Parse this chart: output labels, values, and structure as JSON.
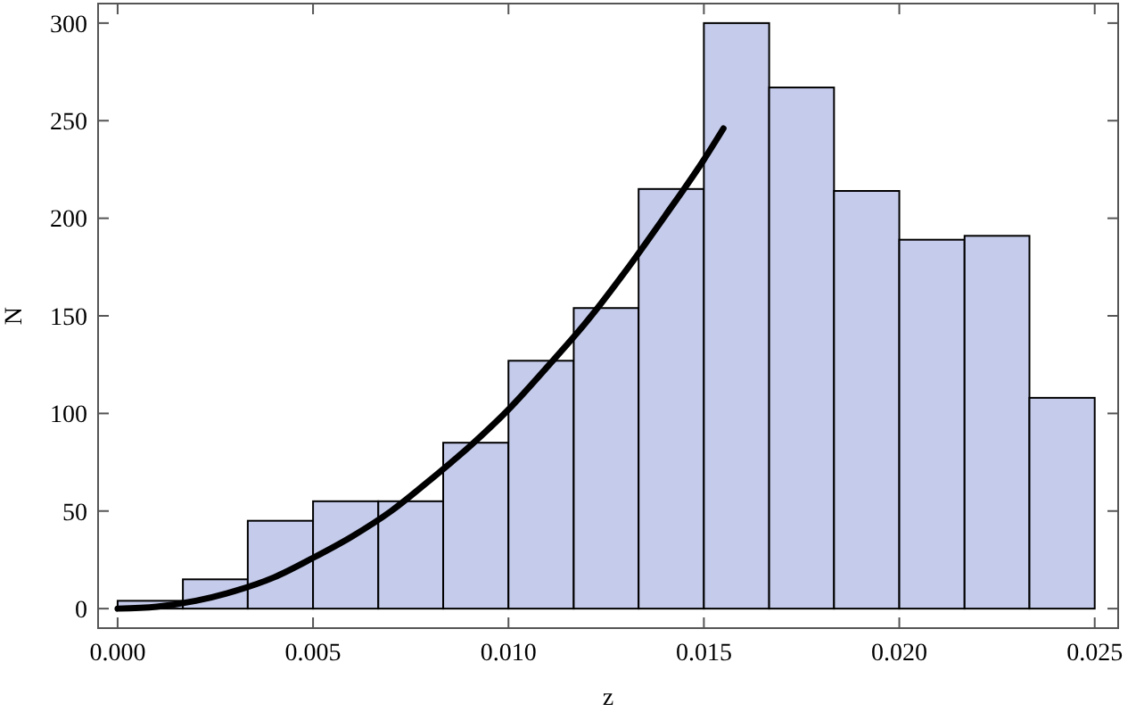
{
  "chart_data": {
    "type": "histogram",
    "xlabel": "z",
    "ylabel": "N",
    "bins": [
      0,
      0.00167,
      0.00333,
      0.005,
      0.00667,
      0.00833,
      0.01,
      0.01167,
      0.01333,
      0.015,
      0.01667,
      0.01833,
      0.02,
      0.02167,
      0.02333,
      0.025
    ],
    "values": [
      4,
      15,
      45,
      55,
      55,
      85,
      127,
      154,
      215,
      300,
      267,
      214,
      189,
      191,
      108
    ],
    "color": "#c5cbeb",
    "series": [
      {
        "type": "line",
        "color": "#000000",
        "x": [
          0,
          0.001,
          0.002,
          0.003,
          0.004,
          0.005,
          0.006,
          0.007,
          0.008,
          0.009,
          0.01,
          0.011,
          0.012,
          0.013,
          0.014,
          0.015,
          0.0155
        ],
        "values": [
          0,
          1,
          4,
          9,
          16,
          26,
          37,
          50,
          66,
          83,
          102,
          124,
          147,
          173,
          201,
          230,
          246
        ]
      }
    ],
    "xlim": [
      -0.0005,
      0.0256
    ],
    "ylim": [
      -10,
      310
    ],
    "xticks": [
      {
        "value": 0,
        "label": "0.000"
      },
      {
        "value": 0.005,
        "label": "0.005"
      },
      {
        "value": 0.01,
        "label": "0.010"
      },
      {
        "value": 0.015,
        "label": "0.015"
      },
      {
        "value": 0.02,
        "label": "0.020"
      },
      {
        "value": 0.025,
        "label": "0.025"
      }
    ],
    "yticks": [
      0,
      50,
      100,
      150,
      200,
      250,
      300
    ],
    "grid": false
  }
}
